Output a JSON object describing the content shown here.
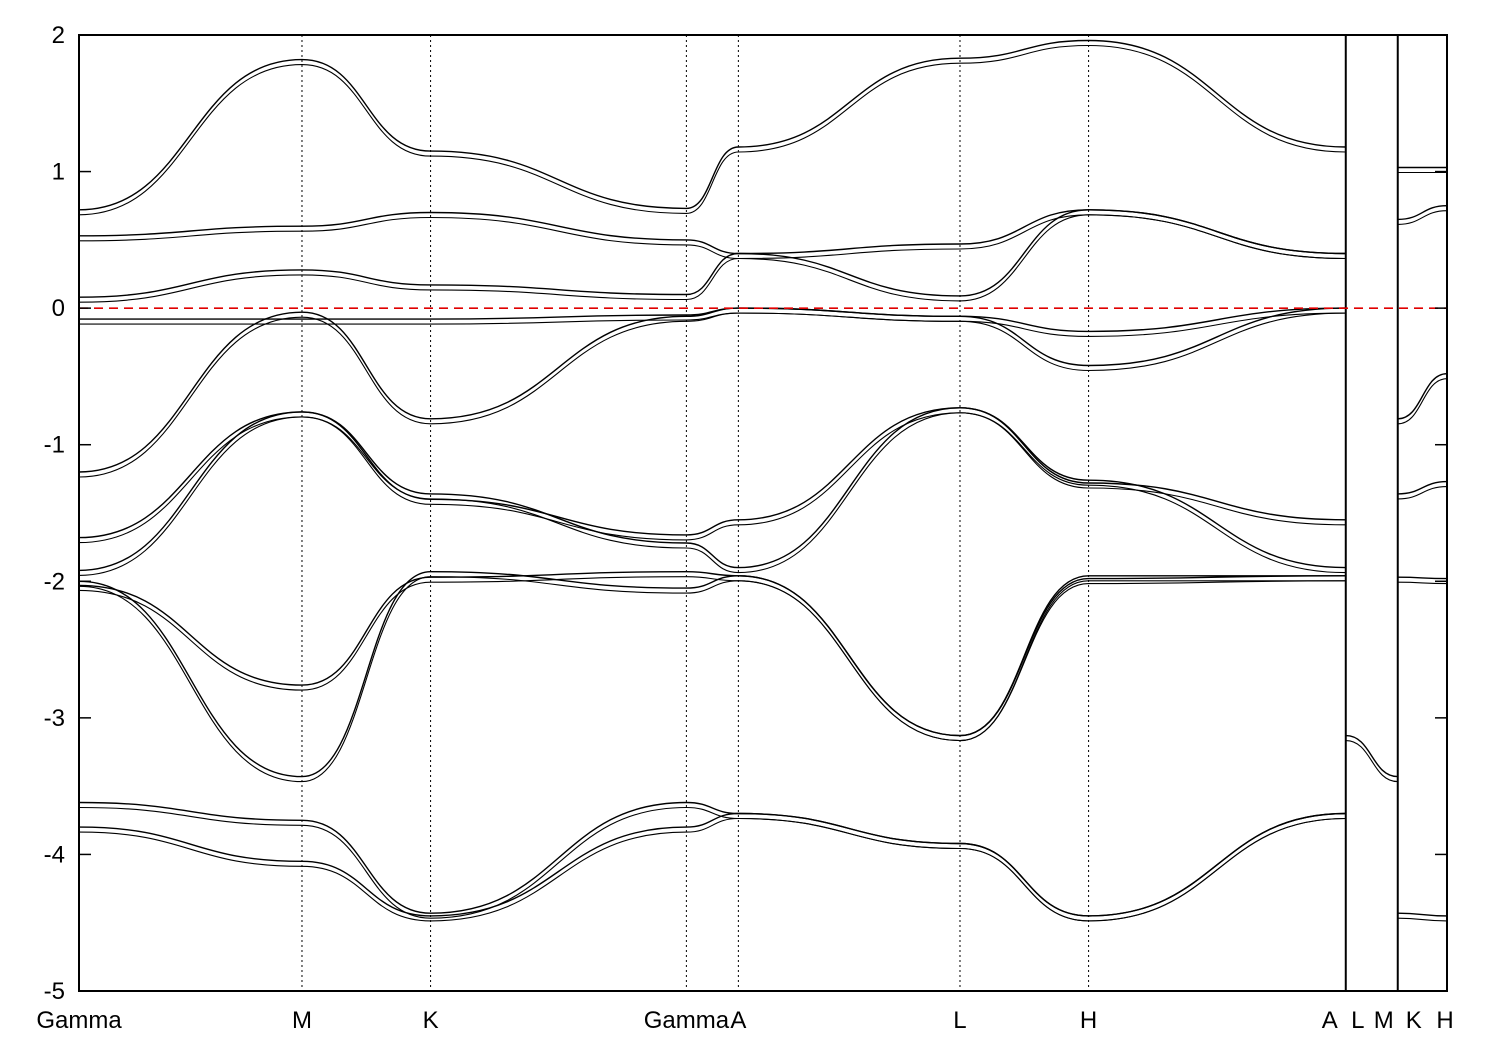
{
  "chart_data": {
    "type": "line",
    "title": "",
    "xlabel": "",
    "ylabel": "",
    "ylim": [
      -5,
      2
    ],
    "y_ticks": [
      "2",
      "1",
      "0",
      "-1",
      "-2",
      "-3",
      "-4",
      "-5"
    ],
    "y_tick_values": [
      2,
      1,
      0,
      -1,
      -2,
      -3,
      -4,
      -5
    ],
    "grid": "vertical dotted lines at high-symmetry points",
    "fermi_level": 0,
    "fermi_line_color": "#e00000",
    "band_color": "#000000",
    "x_ticks": [
      "Gamma",
      "M",
      "K",
      "Gamma",
      "A",
      "L",
      "H",
      "A",
      "L",
      "M",
      "K",
      "H"
    ],
    "x_tick_positions": [
      0,
      0.163,
      0.257,
      0.444,
      0.482,
      0.644,
      0.738,
      0.926,
      0.926,
      0.964,
      0.964,
      1.0
    ],
    "discontinuities_at": [
      0.926,
      0.964
    ],
    "series": [
      {
        "x": [
          0,
          0.163,
          0.257,
          0.444,
          0.482,
          0.644,
          0.738,
          0.926
        ],
        "values": [
          -3.62,
          -3.75,
          -4.43,
          -3.62,
          -3.7,
          -3.92,
          -4.45,
          -3.7
        ]
      },
      {
        "x": [
          0,
          0.163,
          0.257,
          0.444,
          0.482,
          0.644,
          0.738,
          0.926
        ],
        "values": [
          -3.8,
          -4.05,
          -4.45,
          -3.8,
          -3.7,
          -3.92,
          -4.45,
          -3.7
        ]
      },
      {
        "x": [
          0,
          0.163,
          0.257,
          0.444,
          0.482,
          0.644,
          0.738,
          0.926
        ],
        "values": [
          -2.0,
          -3.43,
          -1.93,
          -2.05,
          -1.96,
          -3.13,
          -1.96,
          -1.96
        ]
      },
      {
        "x": [
          0,
          0.163,
          0.257,
          0.444,
          0.482,
          0.644,
          0.738,
          0.926
        ],
        "values": [
          -2.03,
          -2.76,
          -1.97,
          -1.93,
          -1.96,
          -3.13,
          -1.98,
          -1.96
        ]
      },
      {
        "x": [
          0,
          0.163,
          0.257,
          0.444,
          0.482,
          0.644,
          0.738,
          0.926
        ],
        "values": [
          -1.92,
          -0.76,
          -1.36,
          -1.72,
          -1.9,
          -0.73,
          -1.26,
          -1.9
        ]
      },
      {
        "x": [
          0,
          0.163,
          0.257,
          0.444,
          0.482,
          0.644,
          0.738,
          0.926
        ],
        "values": [
          -1.68,
          -0.76,
          -1.4,
          -1.66,
          -1.55,
          -0.73,
          -1.28,
          -1.55
        ]
      },
      {
        "x": [
          0,
          0.163,
          0.257,
          0.444,
          0.482,
          0.644,
          0.738,
          0.926
        ],
        "values": [
          -1.2,
          -0.03,
          -0.81,
          -0.06,
          0.0,
          -0.06,
          -0.42,
          0.0
        ]
      },
      {
        "x": [
          0,
          0.163,
          0.257,
          0.444,
          0.482,
          0.644,
          0.738,
          0.926
        ],
        "values": [
          -0.08,
          -0.08,
          -0.08,
          -0.05,
          0.0,
          -0.06,
          -0.17,
          0.0
        ]
      },
      {
        "x": [
          0,
          0.163,
          0.257,
          0.444,
          0.482,
          0.644,
          0.738,
          0.926
        ],
        "values": [
          0.08,
          0.28,
          0.17,
          0.1,
          0.4,
          0.09,
          0.72,
          0.4
        ]
      },
      {
        "x": [
          0,
          0.163,
          0.257,
          0.444,
          0.482,
          0.644,
          0.738,
          0.926
        ],
        "values": [
          0.53,
          0.6,
          0.7,
          0.5,
          0.4,
          0.47,
          0.72,
          0.4
        ]
      },
      {
        "x": [
          0,
          0.163,
          0.257,
          0.444,
          0.482,
          0.644,
          0.738,
          0.926
        ],
        "values": [
          0.72,
          1.82,
          1.15,
          0.73,
          1.18,
          1.83,
          1.96,
          1.18
        ]
      },
      {
        "x": [
          0.926,
          0.964,
          1.0
        ],
        "values": [
          -3.13,
          -3.43,
          null
        ]
      },
      {
        "x": [
          0.964,
          1.0
        ],
        "values": [
          -4.43,
          -4.45
        ]
      },
      {
        "x": [
          0.964,
          1.0
        ],
        "values": [
          -1.97,
          -1.98
        ]
      },
      {
        "x": [
          0.964,
          1.0
        ],
        "values": [
          -1.36,
          -1.27
        ]
      },
      {
        "x": [
          0.964,
          1.0
        ],
        "values": [
          -0.81,
          -0.48
        ]
      },
      {
        "x": [
          0.964,
          1.0
        ],
        "values": [
          0.65,
          0.75
        ]
      },
      {
        "x": [
          0.964,
          1.0
        ],
        "values": [
          1.03,
          1.03
        ]
      }
    ]
  }
}
